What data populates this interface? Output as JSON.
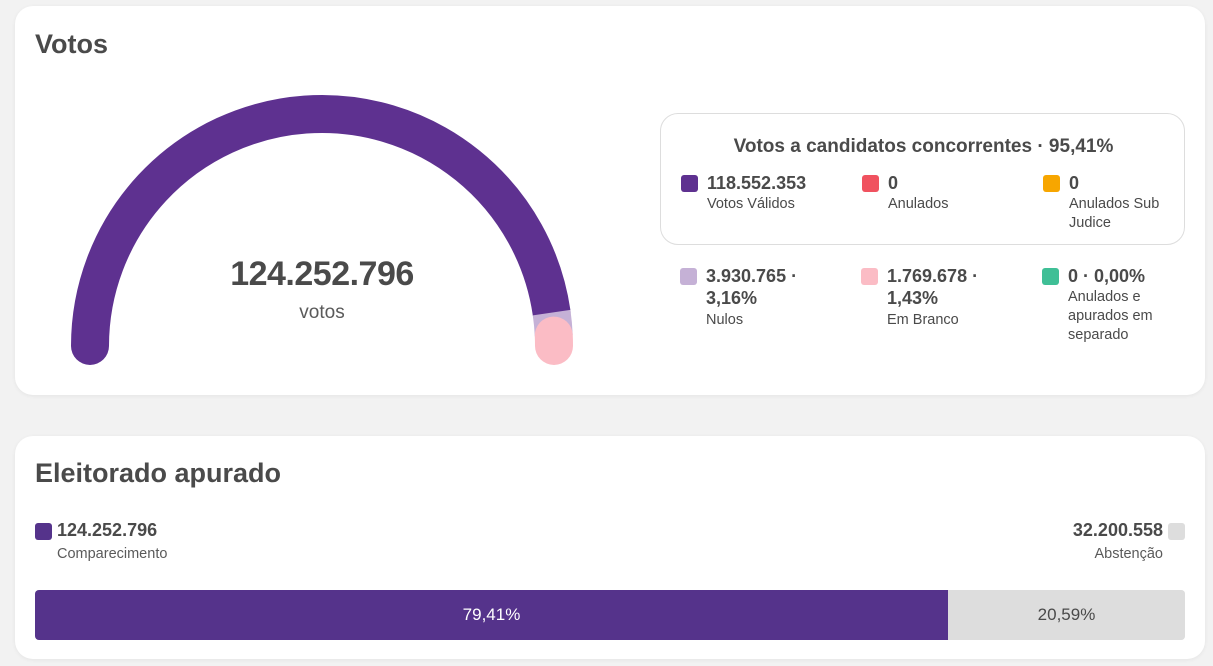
{
  "votos": {
    "title": "Votos",
    "gauge": {
      "total": "124.252.796",
      "unit": "votos",
      "segments": [
        {
          "name": "validos",
          "fraction": 0.9541,
          "color": "#5e3190"
        },
        {
          "name": "nulos",
          "fraction": 0.0316,
          "color": "#c5b1d6"
        },
        {
          "name": "brancos",
          "fraction": 0.0143,
          "color": "#fbbcc5"
        }
      ]
    },
    "concorrentes": {
      "title": "Votos a candidatos concorrentes · 95,41%",
      "items": [
        {
          "value": "118.552.353",
          "label": "Votos Válidos",
          "color": "#5e3190"
        },
        {
          "value": "0",
          "label": "Anulados",
          "color": "#f0525f"
        },
        {
          "value": "0",
          "label": "Anulados Sub Judice",
          "color": "#f7a600"
        }
      ]
    },
    "outros": [
      {
        "value": "3.930.765 · 3,16%",
        "label": "Nulos",
        "color": "#c5b1d6"
      },
      {
        "value": "1.769.678 · 1,43%",
        "label": "Em Branco",
        "color": "#fbbcc5"
      },
      {
        "value": "0 · 0,00%",
        "label": "Anulados e apurados em separado",
        "color": "#3fbf96"
      }
    ]
  },
  "eleitorado": {
    "title": "Eleitorado apurado",
    "comparecimento": {
      "value": "124.252.796",
      "label": "Comparecimento",
      "percent_label": "79,41%",
      "fraction": 0.7941,
      "color": "#55338b"
    },
    "abstencao": {
      "value": "32.200.558",
      "label": "Abstenção",
      "percent_label": "20,59%",
      "fraction": 0.2059,
      "color": "#dddddd"
    }
  }
}
